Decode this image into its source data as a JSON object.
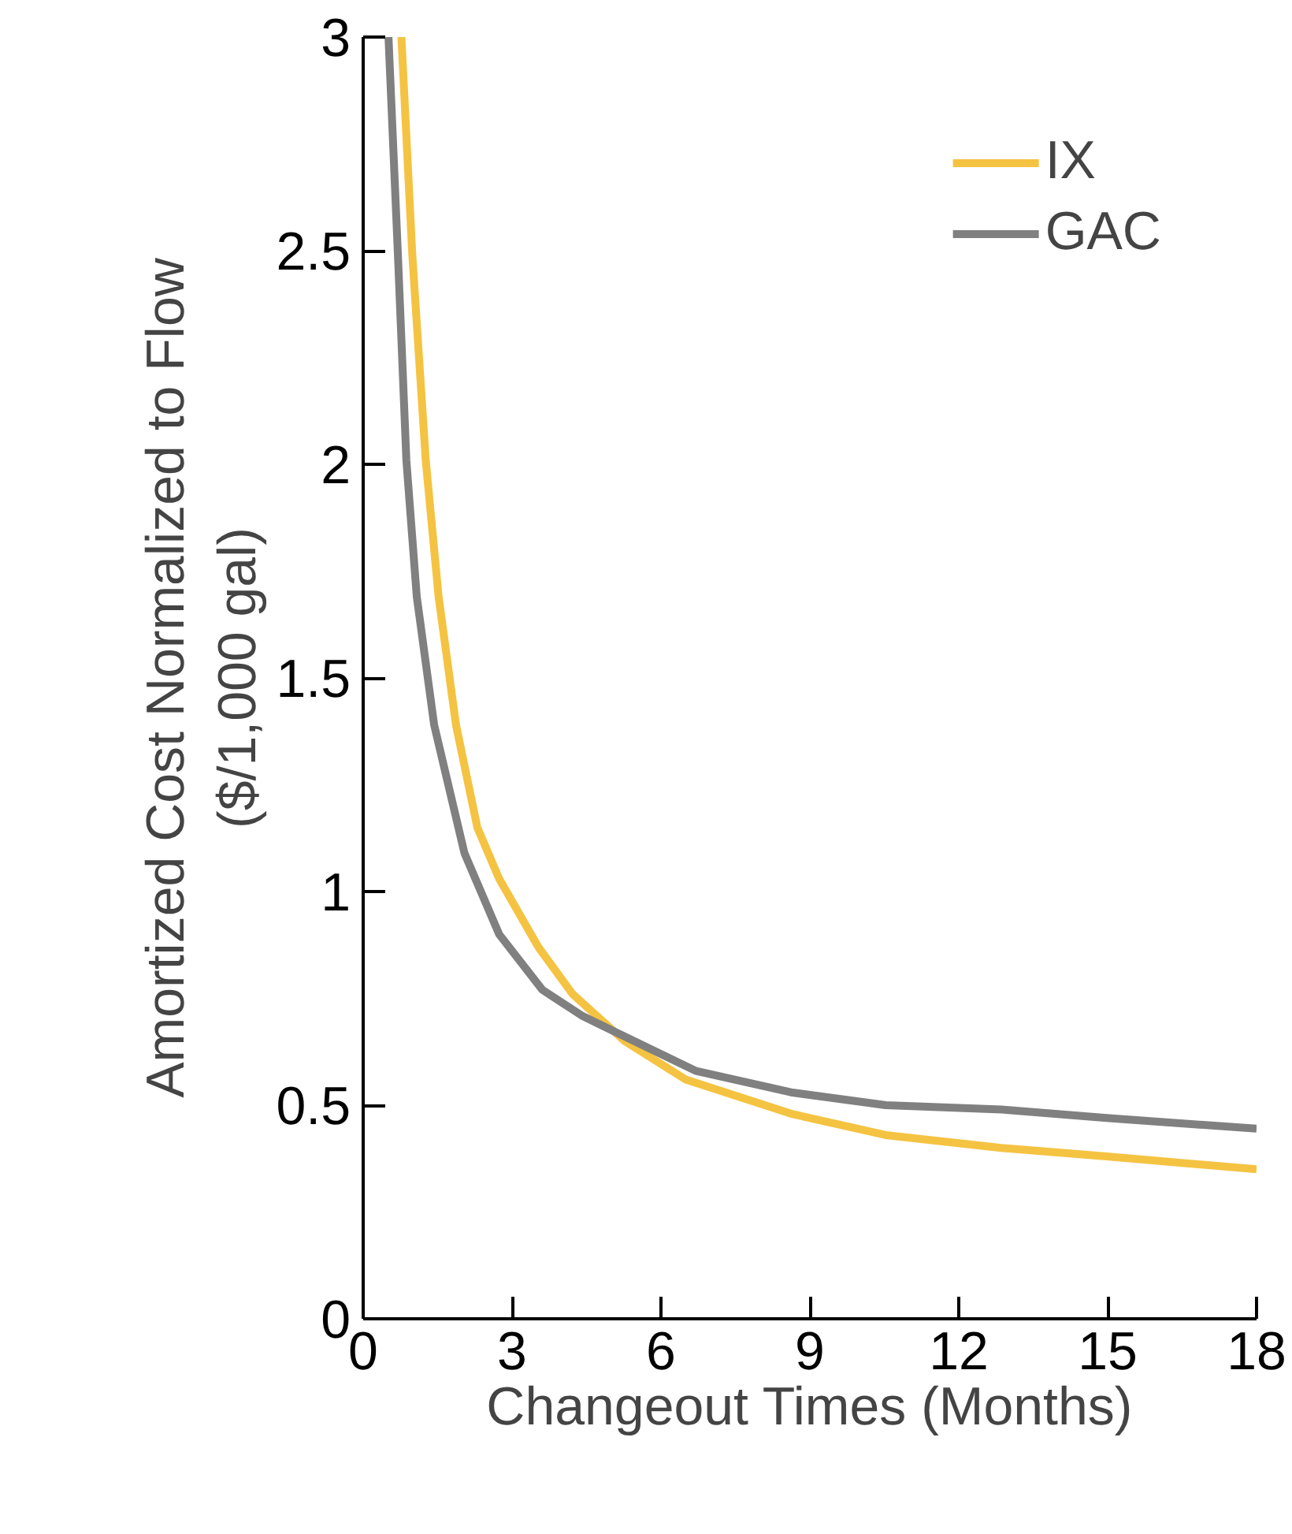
{
  "chart_data": {
    "type": "line",
    "xlabel": "Changeout Times (Months)",
    "ylabel": "Amortized Cost Normalized to Flow\n($/1,000 gal)",
    "xlim": [
      0,
      18
    ],
    "ylim": [
      0,
      3
    ],
    "xticks": [
      0,
      3,
      6,
      9,
      12,
      15,
      18
    ],
    "yticks": [
      0,
      0.5,
      1,
      1.5,
      2,
      2.5,
      3
    ],
    "legend": "top right",
    "grid": false,
    "line_style": "solid",
    "series": [
      {
        "name": "IX",
        "color": "#f5c342",
        "x": [
          0.77,
          0.99,
          1.26,
          1.52,
          1.87,
          2.3,
          2.74,
          3.53,
          4.22,
          5.27,
          6.5,
          8.62,
          10.53,
          12.86,
          14.98,
          18
        ],
        "values": [
          3.0,
          2.49,
          2.01,
          1.69,
          1.39,
          1.15,
          1.03,
          0.87,
          0.76,
          0.65,
          0.56,
          0.48,
          0.43,
          0.4,
          0.38,
          0.35
        ]
      },
      {
        "name": "GAC",
        "color": "#808080",
        "x": [
          0.51,
          0.7,
          0.87,
          1.08,
          1.43,
          2.04,
          2.74,
          3.61,
          4.4,
          5.1,
          6.71,
          8.62,
          10.53,
          12.86,
          14.98,
          18
        ],
        "values": [
          3.0,
          2.49,
          2.01,
          1.69,
          1.39,
          1.09,
          0.9,
          0.77,
          0.71,
          0.67,
          0.58,
          0.53,
          0.5,
          0.49,
          0.47,
          0.445
        ]
      }
    ]
  }
}
